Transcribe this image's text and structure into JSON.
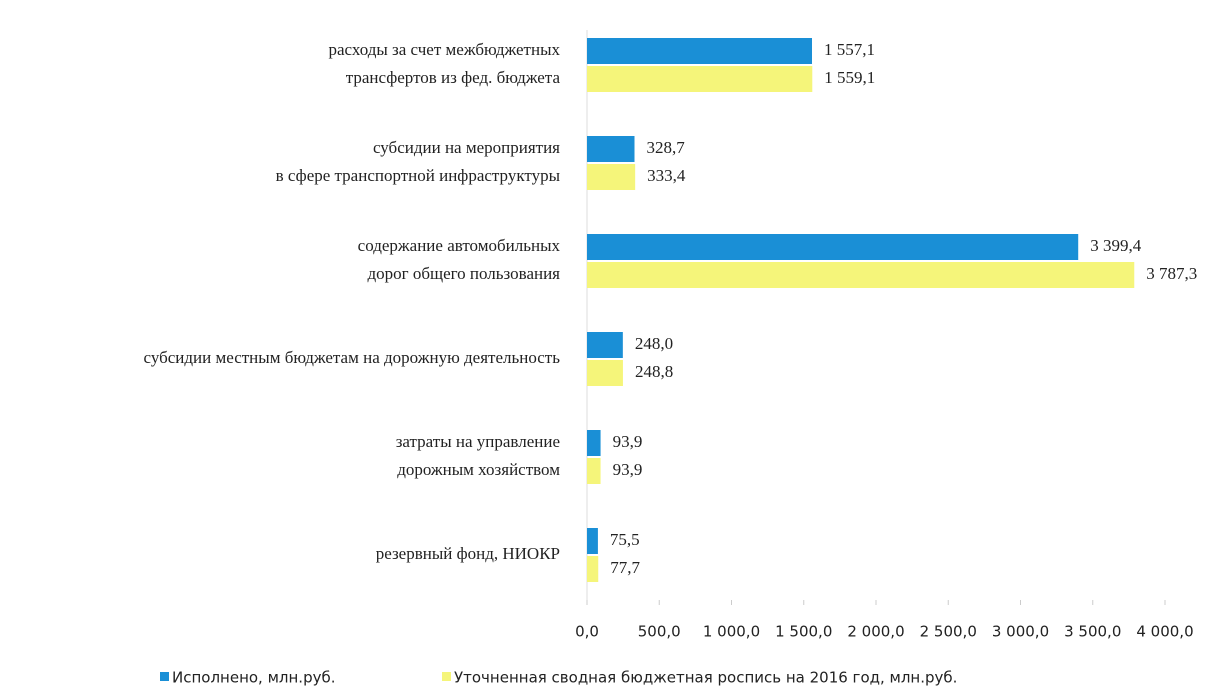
{
  "chart_data": {
    "type": "barh",
    "categories": [
      [
        "расходы за счет межбюджетных",
        "трансфертов из фед. бюджета"
      ],
      [
        "субсидии на мероприятия",
        "в сфере транспортной инфраструктуры"
      ],
      [
        "содержание автомобильных",
        "дорог общего пользования"
      ],
      [
        "субсидии местным бюджетам на дорожную деятельность"
      ],
      [
        "затраты на управление",
        "дорожным хозяйством"
      ],
      [
        "резервный фонд, НИОКР"
      ]
    ],
    "series": [
      {
        "name": "Исполнено, млн.руб.",
        "color": "#1a8fd6",
        "values": [
          1557.1,
          328.7,
          3399.4,
          248.0,
          93.9,
          75.5
        ],
        "value_labels": [
          "1 557,1",
          "328,7",
          "3 399,4",
          "248,0",
          "93,9",
          "75,5"
        ]
      },
      {
        "name": "Уточненная сводная бюджетная роспись на 2016 год, млн.руб.",
        "color": "#f5f57a",
        "values": [
          1559.1,
          333.4,
          3787.3,
          248.8,
          93.9,
          77.7
        ],
        "value_labels": [
          "1 559,1",
          "333,4",
          "3 787,3",
          "248,8",
          "93,9",
          "77,7"
        ]
      }
    ],
    "xlim": [
      0,
      4000
    ],
    "xticks": [
      {
        "value": 0,
        "label": "0,0"
      },
      {
        "value": 500,
        "label": "500,0"
      },
      {
        "value": 1000,
        "label": "1 000,0"
      },
      {
        "value": 1500,
        "label": "1 500,0"
      },
      {
        "value": 2000,
        "label": "2 000,0"
      },
      {
        "value": 2500,
        "label": "2 500,0"
      },
      {
        "value": 3000,
        "label": "3 000,0"
      },
      {
        "value": 3500,
        "label": "3 500,0"
      },
      {
        "value": 4000,
        "label": "4 000,0"
      }
    ],
    "legend": "bottom"
  }
}
